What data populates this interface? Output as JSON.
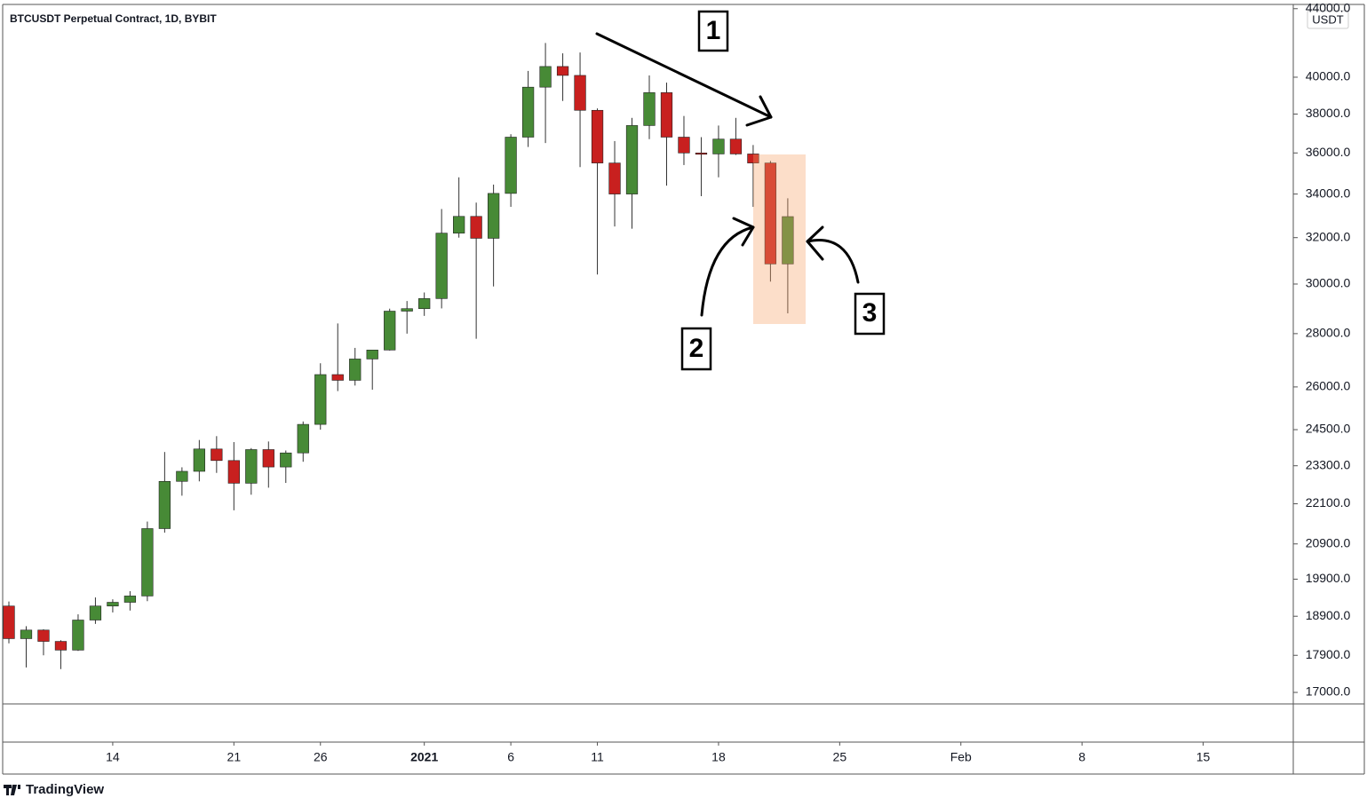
{
  "chart_data": {
    "type": "candlestick",
    "title": "BTCUSDT Perpetual Contract, 1D, BYBIT",
    "currency": "USDT",
    "log_scale": true,
    "up_color": "#478a36",
    "down_color": "#c8201f",
    "x": [
      "2020-12-08",
      "2020-12-09",
      "2020-12-10",
      "2020-12-11",
      "2020-12-12",
      "2020-12-13",
      "2020-12-14",
      "2020-12-15",
      "2020-12-16",
      "2020-12-17",
      "2020-12-18",
      "2020-12-19",
      "2020-12-20",
      "2020-12-21",
      "2020-12-22",
      "2020-12-23",
      "2020-12-24",
      "2020-12-25",
      "2020-12-26",
      "2020-12-27",
      "2020-12-28",
      "2020-12-29",
      "2020-12-30",
      "2020-12-31",
      "2021-01-01",
      "2021-01-02",
      "2021-01-03",
      "2021-01-04",
      "2021-01-05",
      "2021-01-06",
      "2021-01-07",
      "2021-01-08",
      "2021-01-09",
      "2021-01-10",
      "2021-01-11",
      "2021-01-12",
      "2021-01-13",
      "2021-01-14",
      "2021-01-15",
      "2021-01-16",
      "2021-01-17",
      "2021-01-18",
      "2021-01-19",
      "2021-01-20",
      "2021-01-21",
      "2021-01-22"
    ],
    "open": [
      19170,
      18320,
      18540,
      18250,
      18030,
      18800,
      19170,
      19270,
      19440,
      21350,
      22800,
      23120,
      23850,
      23470,
      22740,
      23830,
      23260,
      23720,
      24680,
      26450,
      26240,
      27030,
      27370,
      28890,
      28990,
      29400,
      32200,
      32960,
      31970,
      34030,
      36800,
      39450,
      40600,
      40100,
      38200,
      35500,
      34000,
      37400,
      39150,
      36800,
      36000,
      35950,
      36700,
      35950,
      35500,
      30850
    ],
    "high": [
      19290,
      18640,
      18560,
      18280,
      18950,
      19400,
      19350,
      19570,
      21560,
      23750,
      23250,
      24150,
      24280,
      24080,
      23880,
      24100,
      23800,
      24780,
      26870,
      28400,
      27450,
      27380,
      28990,
      29300,
      29650,
      33300,
      34800,
      33600,
      34450,
      36950,
      40350,
      41950,
      41350,
      41400,
      38300,
      36600,
      37800,
      40100,
      39700,
      37900,
      36800,
      37400,
      37800,
      36400,
      35600,
      33800
    ],
    "low": [
      18200,
      17600,
      17900,
      17560,
      18010,
      18700,
      19000,
      19050,
      19300,
      21230,
      22350,
      22800,
      23070,
      21900,
      22380,
      22600,
      22750,
      23430,
      24500,
      25850,
      26050,
      25900,
      27350,
      28000,
      28700,
      29000,
      32000,
      27800,
      29900,
      33400,
      36300,
      36500,
      38700,
      35300,
      30400,
      32500,
      32400,
      36700,
      34400,
      35400,
      33900,
      34800,
      35900,
      33400,
      30100,
      28800
    ],
    "close": [
      18320,
      18540,
      18250,
      18030,
      18800,
      19170,
      19270,
      19440,
      21350,
      22800,
      23120,
      23850,
      23470,
      22740,
      23830,
      23260,
      23720,
      24680,
      26450,
      26240,
      27030,
      27370,
      28890,
      28990,
      29400,
      32200,
      32960,
      31970,
      34030,
      36800,
      39450,
      40600,
      40100,
      38200,
      35500,
      34000,
      37400,
      39150,
      36800,
      36000,
      35950,
      36700,
      35950,
      35500,
      30850,
      32950
    ],
    "xlim": [
      "2020-12-08",
      "2021-02-20"
    ],
    "xticks": [
      {
        "value": "2020-12-14",
        "label": "14"
      },
      {
        "value": "2020-12-21",
        "label": "21"
      },
      {
        "value": "2020-12-26",
        "label": "26"
      },
      {
        "value": "2021-01-01",
        "label": "2021"
      },
      {
        "value": "2021-01-06",
        "label": "6"
      },
      {
        "value": "2021-01-11",
        "label": "11"
      },
      {
        "value": "2021-01-18",
        "label": "18"
      },
      {
        "value": "2021-01-25",
        "label": "25"
      },
      {
        "value": "2021-02-01",
        "label": "Feb"
      },
      {
        "value": "2021-02-08",
        "label": "8"
      },
      {
        "value": "2021-02-15",
        "label": "15"
      }
    ],
    "ylim": [
      16730,
      44260
    ],
    "yticks": [
      {
        "value": 17000,
        "label": "17000.0"
      },
      {
        "value": 17900,
        "label": "17900.0"
      },
      {
        "value": 18900,
        "label": "18900.0"
      },
      {
        "value": 19900,
        "label": "19900.0"
      },
      {
        "value": 20900,
        "label": "20900.0"
      },
      {
        "value": 22100,
        "label": "22100.0"
      },
      {
        "value": 23300,
        "label": "23300.0"
      },
      {
        "value": 24500,
        "label": "24500.0"
      },
      {
        "value": 26000,
        "label": "26000.0"
      },
      {
        "value": 28000,
        "label": "28000.0"
      },
      {
        "value": 30000,
        "label": "30000.0"
      },
      {
        "value": 32000,
        "label": "32000.0"
      },
      {
        "value": 34000,
        "label": "34000.0"
      },
      {
        "value": 36000,
        "label": "36000.0"
      },
      {
        "value": 38000,
        "label": "38000.0"
      },
      {
        "value": 40000,
        "label": "40000.0"
      },
      {
        "value": 44000,
        "label": "44000.0"
      }
    ],
    "annotations": [
      "1",
      "2",
      "3"
    ]
  },
  "branding": "TradingView"
}
